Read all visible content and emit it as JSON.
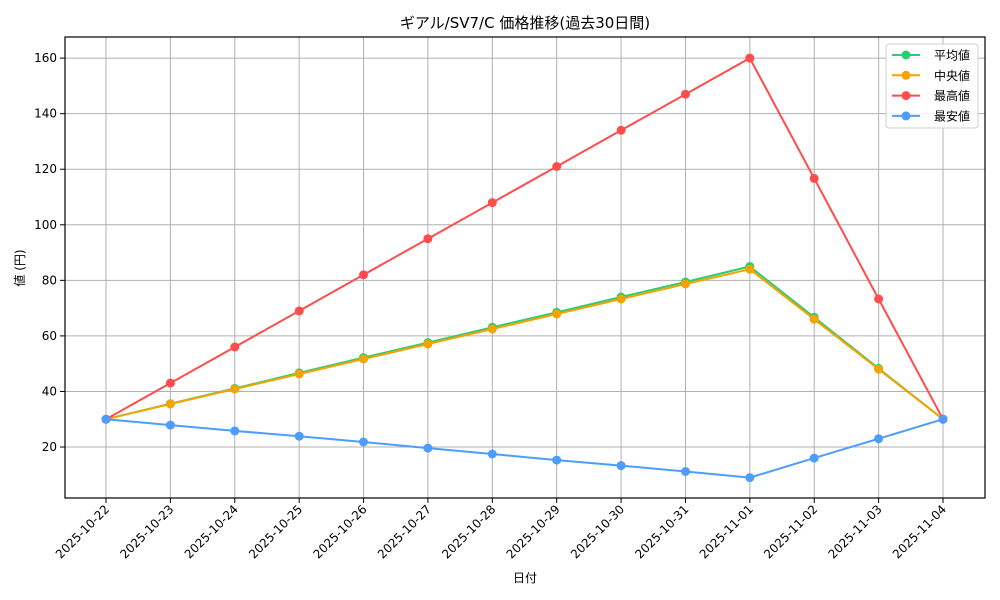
{
  "chart_data": {
    "type": "line",
    "title": "ギアル/SV7/C 価格推移(過去30日間)",
    "xlabel": "日付",
    "ylabel": "値 (円)",
    "x": [
      "2025-10-22",
      "2025-10-23",
      "2025-10-24",
      "2025-10-25",
      "2025-10-26",
      "2025-10-27",
      "2025-10-28",
      "2025-10-29",
      "2025-10-30",
      "2025-10-31",
      "2025-11-01",
      "2025-11-02",
      "2025-11-03",
      "2025-11-04"
    ],
    "yticks": [
      20,
      40,
      60,
      80,
      100,
      120,
      140,
      160
    ],
    "ylim": [
      1.65,
      167.6
    ],
    "grid": true,
    "legend_position": "upper right",
    "series": [
      {
        "name": "平均値",
        "color": "#2ecc71",
        "values": [
          30,
          35.6,
          41.1,
          46.7,
          52.2,
          57.6,
          63.1,
          68.5,
          74.0,
          79.4,
          85.0,
          66.7,
          48.3,
          30
        ]
      },
      {
        "name": "中央値",
        "color": "#f5a300",
        "values": [
          30,
          35.5,
          40.9,
          46.3,
          51.7,
          57.1,
          62.5,
          67.9,
          73.3,
          78.7,
          84.0,
          66.0,
          48.0,
          30
        ]
      },
      {
        "name": "最高値",
        "color": "#ff4d4d",
        "values": [
          30,
          43,
          56,
          69,
          82,
          95,
          108,
          121,
          134,
          147,
          160,
          116.7,
          73.3,
          30
        ]
      },
      {
        "name": "最安値",
        "color": "#4d9dff",
        "values": [
          30,
          27.9,
          25.8,
          23.9,
          21.8,
          19.6,
          17.5,
          15.3,
          13.3,
          11.2,
          9.0,
          16.0,
          23.0,
          30
        ]
      }
    ]
  }
}
